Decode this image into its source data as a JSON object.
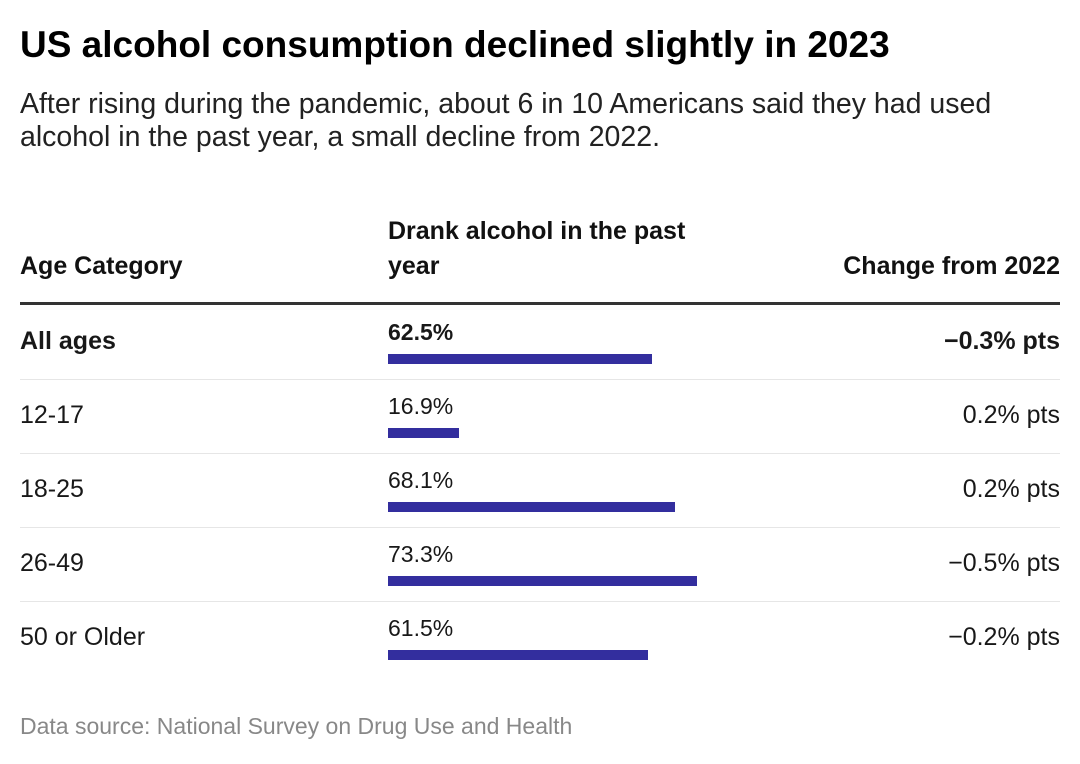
{
  "title": "US alcohol consumption declined slightly in 2023",
  "subtitle": "After rising during the pandemic, about 6 in 10 Americans said they had used alcohol in the past year, a small decline from 2022.",
  "source": "Data source: National Survey on Drug Use and Health",
  "chart_data": {
    "type": "table",
    "columns": [
      "Age Category",
      "Drank alcohol in the past year",
      "Change from 2022"
    ],
    "bar_color": "#332e9e",
    "bar_max": 100,
    "rows": [
      {
        "age": "All ages",
        "value": 62.5,
        "label": "62.5%",
        "change": "−0.3% pts",
        "bold": true
      },
      {
        "age": "12-17",
        "value": 16.9,
        "label": "16.9%",
        "change": "0.2% pts"
      },
      {
        "age": "18-25",
        "value": 68.1,
        "label": "68.1%",
        "change": "0.2% pts"
      },
      {
        "age": "26-49",
        "value": 73.3,
        "label": "73.3%",
        "change": "−0.5% pts"
      },
      {
        "age": "50 or Older",
        "value": 61.5,
        "label": "61.5%",
        "change": "−0.2% pts"
      }
    ]
  }
}
